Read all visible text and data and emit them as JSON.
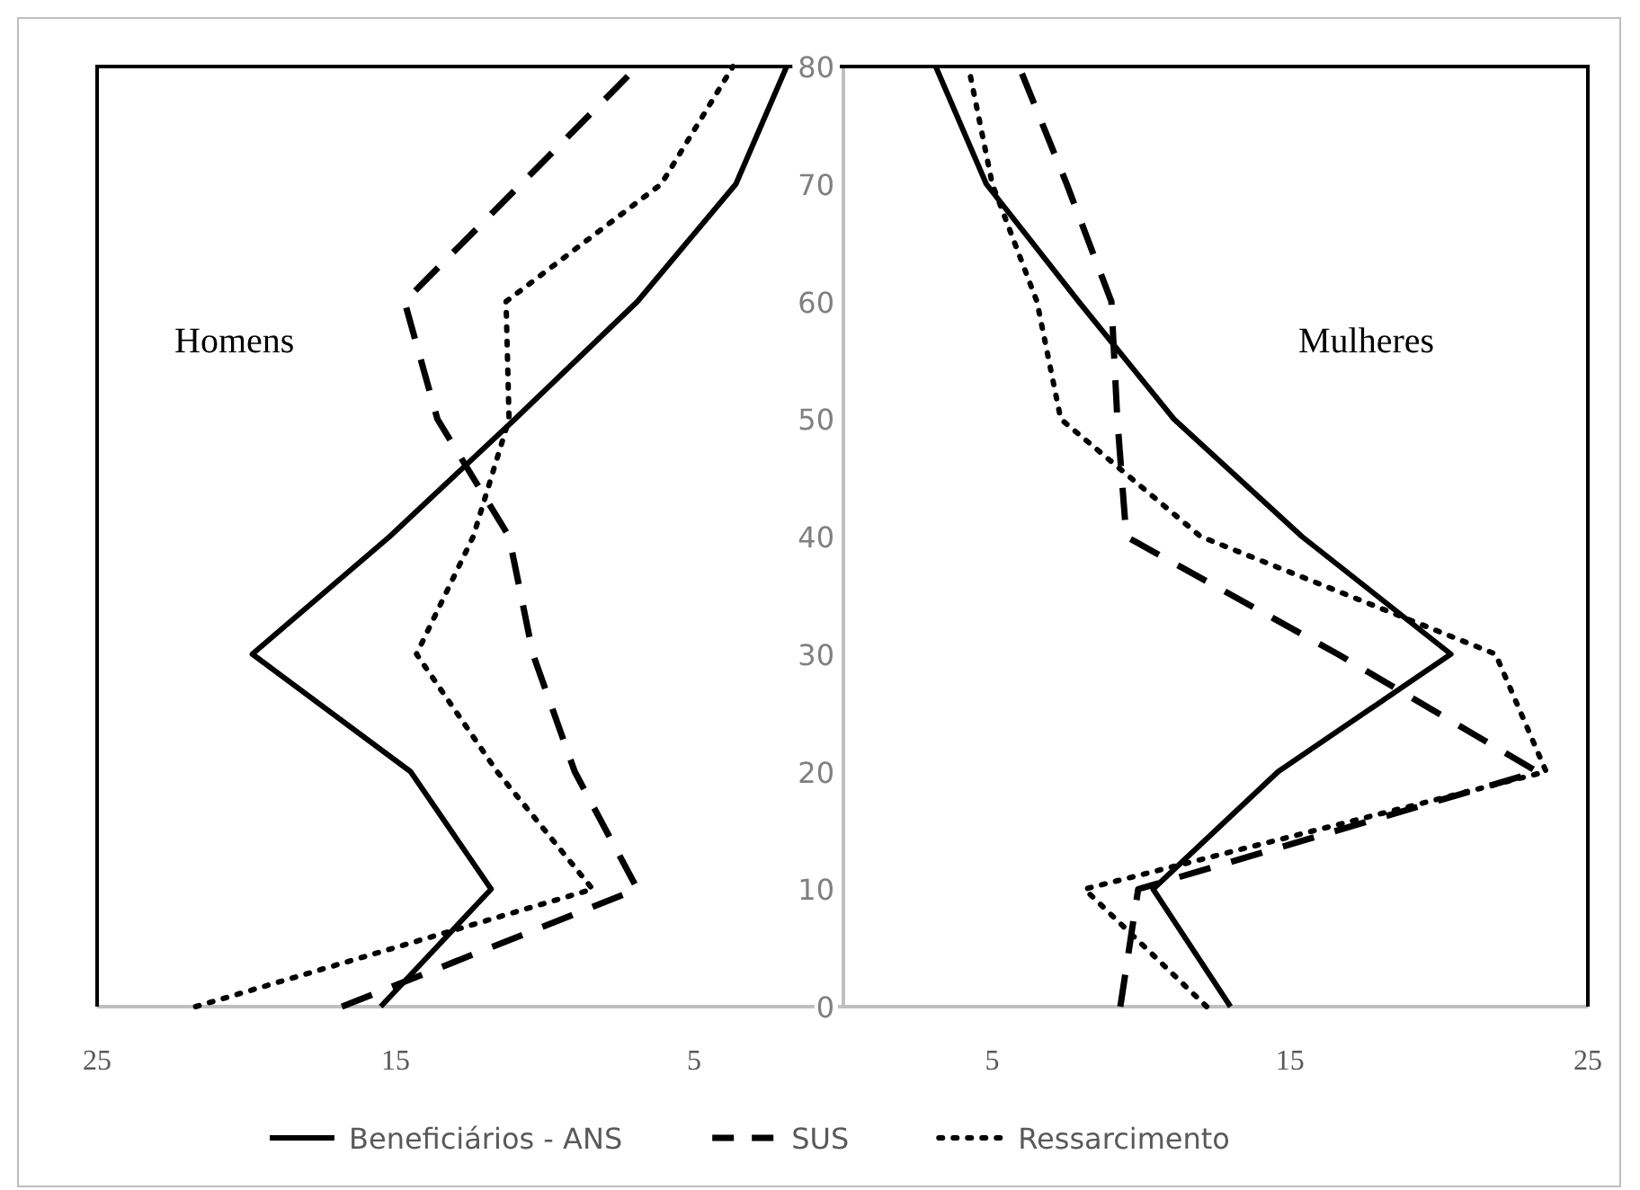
{
  "chart_data": [
    {
      "type": "line",
      "annotations": [
        "Homens"
      ],
      "xlim": [
        25,
        0
      ],
      "xticks": [
        25,
        15,
        5
      ],
      "ylim": [
        0,
        80
      ],
      "yticks": [
        0,
        10,
        20,
        30,
        40,
        50,
        60,
        70,
        80
      ],
      "legend": "bottom",
      "series": [
        {
          "name": "Beneficiários - ANS",
          "color": "#000000",
          "line_style": "solid",
          "x": [
            15.5,
            11.8,
            14.5,
            19.8,
            15.2,
            11.0,
            6.9,
            3.6,
            1.9
          ],
          "values": [
            0,
            10,
            20,
            30,
            40,
            50,
            60,
            70,
            80
          ]
        },
        {
          "name": "SUS",
          "color": "#000000",
          "line_style": "dashed",
          "x": [
            16.8,
            6.9,
            9.0,
            10.4,
            11.2,
            13.6,
            14.7,
            10.8,
            6.9
          ],
          "values": [
            0,
            10,
            20,
            30,
            40,
            50,
            60,
            70,
            80
          ]
        },
        {
          "name": "Ressarcimento",
          "color": "#000000",
          "line_style": "dotted",
          "x": [
            21.7,
            8.4,
            11.6,
            14.3,
            12.4,
            11.2,
            11.3,
            6.1,
            3.7
          ],
          "values": [
            0,
            10,
            20,
            30,
            40,
            50,
            60,
            70,
            80
          ]
        }
      ]
    },
    {
      "type": "line",
      "annotations": [
        "Mulheres"
      ],
      "xlim": [
        0,
        25
      ],
      "xticks": [
        5,
        15,
        25
      ],
      "ylim": [
        0,
        80
      ],
      "tick_labels": "x",
      "series": [
        {
          "color": "#000000",
          "line_style": "solid",
          "x": [
            13.0,
            10.4,
            14.6,
            20.4,
            15.4,
            11.1,
            7.9,
            4.8,
            3.1
          ],
          "values": [
            0,
            10,
            20,
            30,
            40,
            50,
            60,
            70,
            80
          ]
        },
        {
          "color": "#000000",
          "line_style": "dashed",
          "x": [
            9.3,
            9.9,
            23.3,
            16.6,
            9.5,
            9.2,
            9.0,
            7.5,
            5.9
          ],
          "values": [
            0,
            10,
            20,
            30,
            40,
            50,
            60,
            70,
            80
          ]
        },
        {
          "color": "#000000",
          "line_style": "dotted",
          "x": [
            12.2,
            8.1,
            23.6,
            21.9,
            12.0,
            7.3,
            6.5,
            5.0,
            4.2
          ],
          "values": [
            0,
            10,
            20,
            30,
            40,
            50,
            60,
            70,
            80
          ]
        }
      ]
    }
  ]
}
